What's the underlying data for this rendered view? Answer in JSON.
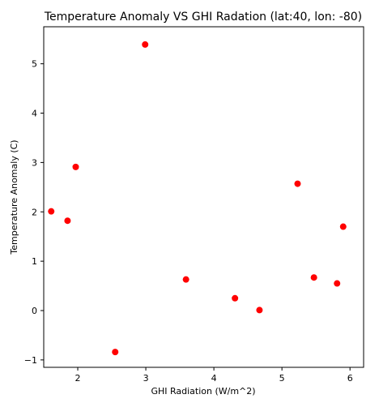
{
  "chart_data": {
    "type": "scatter",
    "title": "Temperature Anomaly VS GHI Radation (lat:40, lon: -80)",
    "xlabel": "GHI Radiation (W/m^2)",
    "ylabel": "Temperature Anomaly (C)",
    "xlim": [
      1.5,
      6.2
    ],
    "ylim": [
      -1.15,
      5.75
    ],
    "xticks": [
      2,
      3,
      4,
      5,
      6
    ],
    "yticks": [
      -1,
      0,
      1,
      2,
      3,
      4,
      5
    ],
    "xtick_labels": [
      "2",
      "3",
      "4",
      "5",
      "6"
    ],
    "ytick_labels": [
      "−1",
      "0",
      "1",
      "2",
      "3",
      "4",
      "5"
    ],
    "grid": false,
    "marker_color": "#ff0000",
    "series": [
      {
        "x": [
          1.61,
          1.85,
          1.97,
          2.55,
          2.99,
          3.59,
          4.31,
          4.67,
          5.23,
          5.47,
          5.81,
          5.9
        ],
        "y": [
          2.01,
          1.82,
          2.91,
          -0.84,
          5.39,
          0.63,
          0.25,
          0.01,
          2.57,
          0.67,
          0.55,
          1.7
        ]
      }
    ]
  }
}
